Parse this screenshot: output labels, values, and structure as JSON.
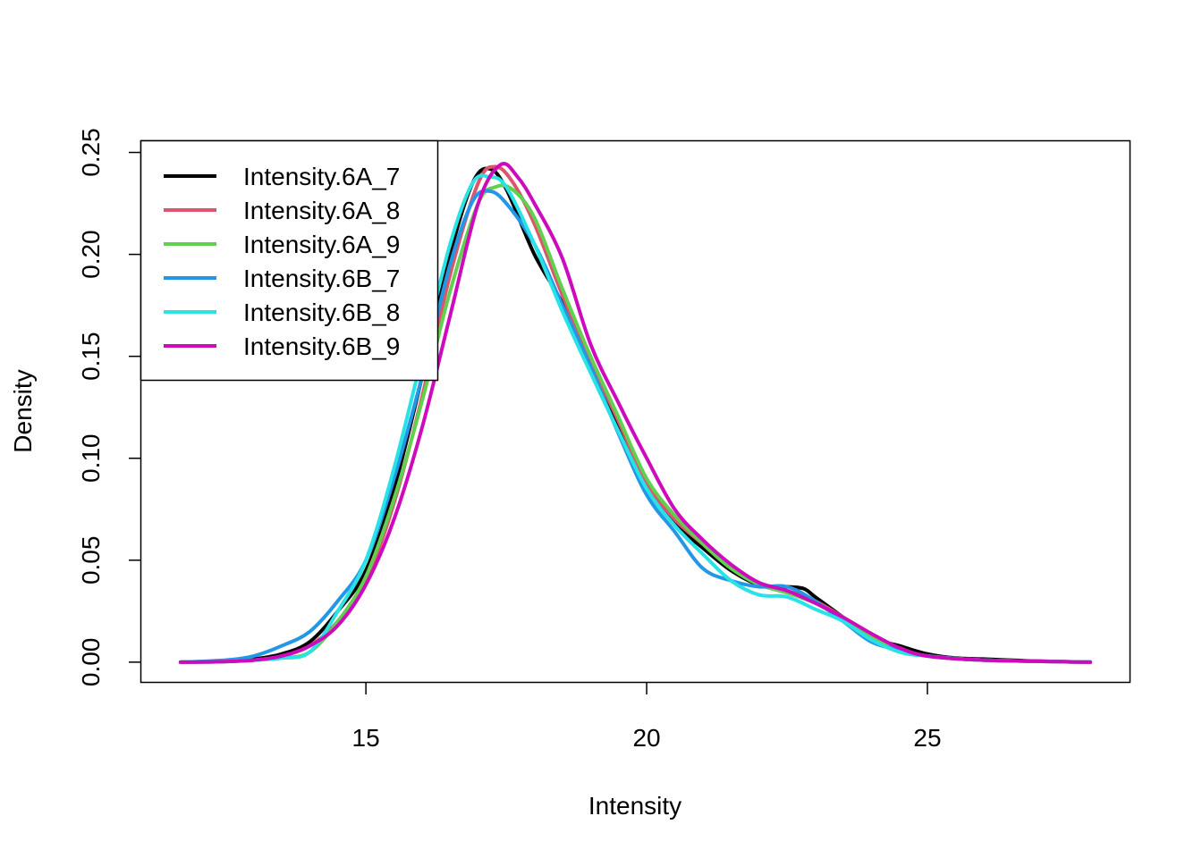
{
  "chart_data": {
    "type": "line",
    "title": "",
    "xlabel": "Intensity",
    "ylabel": "Density",
    "xlim": [
      11.0,
      28.6
    ],
    "ylim": [
      -0.0097,
      0.2555
    ],
    "xticks": [
      15,
      20,
      25
    ],
    "xtick_labels": [
      "15",
      "20",
      "25"
    ],
    "yticks": [
      0.0,
      0.05,
      0.1,
      0.15,
      0.2,
      0.25
    ],
    "ytick_labels": [
      "0.00",
      "0.05",
      "0.10",
      "0.15",
      "0.20",
      "0.25"
    ],
    "grid": false,
    "legend_position": "top-left",
    "series": [
      {
        "name": "Intensity.6A_7",
        "color": "#000000",
        "points": [
          [
            11.7,
            0.0
          ],
          [
            12.5,
            0.0005
          ],
          [
            13.0,
            0.0015
          ],
          [
            13.5,
            0.004
          ],
          [
            14.0,
            0.01
          ],
          [
            14.5,
            0.025
          ],
          [
            15.0,
            0.045
          ],
          [
            15.5,
            0.085
          ],
          [
            16.0,
            0.14
          ],
          [
            16.5,
            0.2
          ],
          [
            16.9,
            0.235
          ],
          [
            17.2,
            0.242
          ],
          [
            17.5,
            0.232
          ],
          [
            18.0,
            0.2
          ],
          [
            18.5,
            0.176
          ],
          [
            19.0,
            0.146
          ],
          [
            19.5,
            0.115
          ],
          [
            20.0,
            0.085
          ],
          [
            20.5,
            0.068
          ],
          [
            21.0,
            0.056
          ],
          [
            21.5,
            0.045
          ],
          [
            22.0,
            0.038
          ],
          [
            22.5,
            0.037
          ],
          [
            22.8,
            0.036
          ],
          [
            23.0,
            0.032
          ],
          [
            23.5,
            0.022
          ],
          [
            24.0,
            0.012
          ],
          [
            24.5,
            0.008
          ],
          [
            25.0,
            0.004
          ],
          [
            25.5,
            0.002
          ],
          [
            26.0,
            0.0015
          ],
          [
            27.0,
            0.0005
          ],
          [
            27.9,
            0.0
          ]
        ]
      },
      {
        "name": "Intensity.6A_8",
        "color": "#DF536B",
        "points": [
          [
            11.7,
            0.0
          ],
          [
            12.5,
            0.0005
          ],
          [
            13.0,
            0.001
          ],
          [
            13.5,
            0.003
          ],
          [
            14.0,
            0.008
          ],
          [
            14.5,
            0.02
          ],
          [
            15.0,
            0.04
          ],
          [
            15.5,
            0.078
          ],
          [
            16.0,
            0.13
          ],
          [
            16.5,
            0.19
          ],
          [
            17.0,
            0.235
          ],
          [
            17.3,
            0.243
          ],
          [
            17.6,
            0.236
          ],
          [
            18.0,
            0.215
          ],
          [
            18.5,
            0.18
          ],
          [
            19.0,
            0.148
          ],
          [
            19.5,
            0.118
          ],
          [
            20.0,
            0.088
          ],
          [
            20.5,
            0.07
          ],
          [
            21.0,
            0.058
          ],
          [
            21.5,
            0.047
          ],
          [
            22.0,
            0.039
          ],
          [
            22.5,
            0.035
          ],
          [
            23.0,
            0.03
          ],
          [
            23.5,
            0.022
          ],
          [
            24.0,
            0.013
          ],
          [
            24.5,
            0.007
          ],
          [
            25.0,
            0.003
          ],
          [
            26.0,
            0.001
          ],
          [
            27.9,
            0.0
          ]
        ]
      },
      {
        "name": "Intensity.6A_9",
        "color": "#61D04F",
        "points": [
          [
            11.7,
            0.0
          ],
          [
            12.5,
            0.0003
          ],
          [
            13.0,
            0.001
          ],
          [
            13.5,
            0.002
          ],
          [
            14.0,
            0.005
          ],
          [
            14.5,
            0.02
          ],
          [
            15.0,
            0.042
          ],
          [
            15.5,
            0.08
          ],
          [
            16.0,
            0.128
          ],
          [
            16.5,
            0.182
          ],
          [
            17.0,
            0.225
          ],
          [
            17.3,
            0.233
          ],
          [
            17.6,
            0.232
          ],
          [
            18.0,
            0.218
          ],
          [
            18.5,
            0.183
          ],
          [
            19.0,
            0.15
          ],
          [
            19.5,
            0.12
          ],
          [
            20.0,
            0.09
          ],
          [
            20.5,
            0.072
          ],
          [
            21.0,
            0.058
          ],
          [
            21.5,
            0.046
          ],
          [
            22.0,
            0.038
          ],
          [
            22.5,
            0.034
          ],
          [
            23.0,
            0.029
          ],
          [
            23.5,
            0.021
          ],
          [
            24.0,
            0.012
          ],
          [
            24.5,
            0.006
          ],
          [
            25.0,
            0.003
          ],
          [
            26.0,
            0.001
          ],
          [
            27.9,
            0.0
          ]
        ]
      },
      {
        "name": "Intensity.6B_7",
        "color": "#2297E6",
        "points": [
          [
            11.7,
            0.0
          ],
          [
            12.5,
            0.001
          ],
          [
            13.0,
            0.003
          ],
          [
            13.5,
            0.008
          ],
          [
            14.0,
            0.015
          ],
          [
            14.5,
            0.03
          ],
          [
            15.0,
            0.05
          ],
          [
            15.5,
            0.09
          ],
          [
            16.0,
            0.14
          ],
          [
            16.5,
            0.195
          ],
          [
            16.9,
            0.226
          ],
          [
            17.2,
            0.231
          ],
          [
            17.5,
            0.225
          ],
          [
            18.0,
            0.205
          ],
          [
            18.5,
            0.175
          ],
          [
            19.0,
            0.145
          ],
          [
            19.5,
            0.112
          ],
          [
            20.0,
            0.082
          ],
          [
            20.5,
            0.064
          ],
          [
            21.0,
            0.046
          ],
          [
            21.5,
            0.04
          ],
          [
            22.0,
            0.037
          ],
          [
            22.5,
            0.037
          ],
          [
            23.0,
            0.03
          ],
          [
            23.5,
            0.02
          ],
          [
            24.0,
            0.01
          ],
          [
            24.5,
            0.006
          ],
          [
            25.0,
            0.003
          ],
          [
            26.0,
            0.001
          ],
          [
            27.9,
            0.0
          ]
        ]
      },
      {
        "name": "Intensity.6B_8",
        "color": "#28E2E5",
        "points": [
          [
            11.7,
            0.0
          ],
          [
            12.5,
            0.0003
          ],
          [
            13.0,
            0.001
          ],
          [
            13.5,
            0.002
          ],
          [
            14.0,
            0.005
          ],
          [
            14.5,
            0.025
          ],
          [
            15.0,
            0.05
          ],
          [
            15.5,
            0.095
          ],
          [
            16.0,
            0.15
          ],
          [
            16.5,
            0.205
          ],
          [
            16.9,
            0.235
          ],
          [
            17.2,
            0.238
          ],
          [
            17.5,
            0.233
          ],
          [
            18.0,
            0.205
          ],
          [
            18.5,
            0.172
          ],
          [
            19.0,
            0.142
          ],
          [
            19.5,
            0.113
          ],
          [
            20.0,
            0.085
          ],
          [
            20.5,
            0.067
          ],
          [
            21.0,
            0.053
          ],
          [
            21.5,
            0.04
          ],
          [
            22.0,
            0.033
          ],
          [
            22.5,
            0.032
          ],
          [
            23.0,
            0.026
          ],
          [
            23.5,
            0.02
          ],
          [
            24.0,
            0.011
          ],
          [
            24.5,
            0.005
          ],
          [
            25.0,
            0.003
          ],
          [
            26.0,
            0.001
          ],
          [
            27.9,
            0.0
          ]
        ]
      },
      {
        "name": "Intensity.6B_9",
        "color": "#CD0BBC",
        "points": [
          [
            11.7,
            0.0
          ],
          [
            12.5,
            0.0003
          ],
          [
            13.0,
            0.001
          ],
          [
            13.5,
            0.003
          ],
          [
            14.0,
            0.008
          ],
          [
            14.5,
            0.018
          ],
          [
            15.0,
            0.038
          ],
          [
            15.5,
            0.07
          ],
          [
            16.0,
            0.115
          ],
          [
            16.5,
            0.17
          ],
          [
            17.0,
            0.225
          ],
          [
            17.4,
            0.244
          ],
          [
            17.7,
            0.238
          ],
          [
            18.0,
            0.225
          ],
          [
            18.5,
            0.198
          ],
          [
            19.0,
            0.156
          ],
          [
            19.5,
            0.127
          ],
          [
            20.0,
            0.1
          ],
          [
            20.5,
            0.075
          ],
          [
            21.0,
            0.06
          ],
          [
            21.5,
            0.048
          ],
          [
            22.0,
            0.039
          ],
          [
            22.5,
            0.035
          ],
          [
            23.0,
            0.029
          ],
          [
            23.5,
            0.022
          ],
          [
            24.0,
            0.014
          ],
          [
            24.5,
            0.007
          ],
          [
            25.0,
            0.003
          ],
          [
            26.0,
            0.001
          ],
          [
            27.9,
            0.0
          ]
        ]
      }
    ]
  }
}
